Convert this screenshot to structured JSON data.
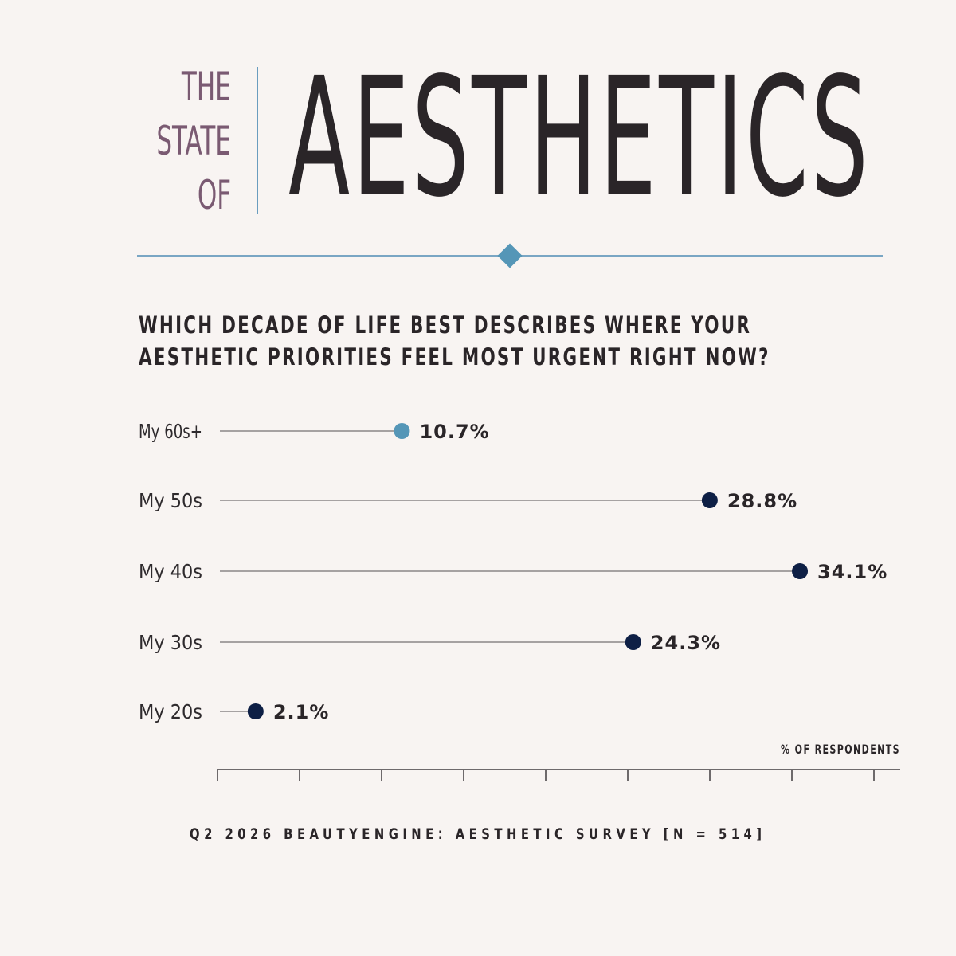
{
  "header": {
    "small_title_lines": [
      "THE",
      "STATE",
      "OF"
    ],
    "big_title": "AESTHETICS"
  },
  "question": {
    "line1": "WHICH DECADE OF LIFE BEST DESCRIBES WHERE YOUR",
    "line2": "AESTHETIC PRIORITIES FEEL MOST URGENT RIGHT NOW?"
  },
  "colors": {
    "background": "#f8f4f2",
    "accent_blue": "#5596b7",
    "highlight_dot": "#5596b7",
    "dot": "#0e1f45",
    "title_purple": "#7a5a72",
    "text_dark": "#2a2528"
  },
  "chart_data": {
    "type": "lollipop",
    "categories": [
      "My 60s+",
      "My 50s",
      "My 40s",
      "My 30s",
      "My 20s"
    ],
    "values": [
      10.7,
      28.8,
      34.1,
      24.3,
      2.1
    ],
    "value_labels": [
      "10.7%",
      "28.8%",
      "34.1%",
      "24.3%",
      "2.1%"
    ],
    "highlighted": [
      "My 60s+"
    ],
    "xlabel": "% OF RESPONDENTS",
    "xlim": [
      0,
      40
    ],
    "tick_count": 9,
    "grid": false
  },
  "footer": {
    "source": "Q2 2026 BEAUTYENGINE: AESTHETIC SURVEY [N = 514]"
  }
}
